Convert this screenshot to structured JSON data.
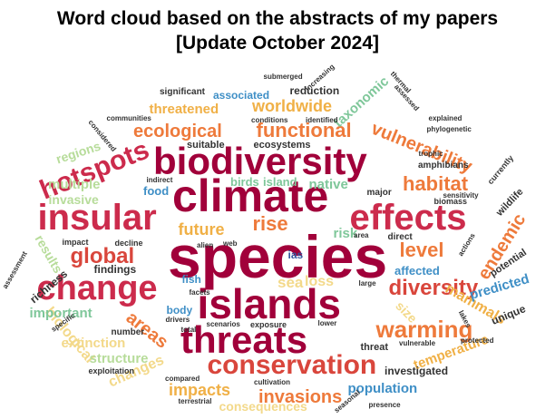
{
  "title": {
    "line1": "Word cloud based on the abstracts of my papers",
    "line2": "[Update October 2024]"
  },
  "colors": {
    "maroon": "#a1003a",
    "crimson": "#cc2b4c",
    "red": "#d9463c",
    "orange": "#ee7a3b",
    "gold": "#f0b046",
    "yellow": "#f3d98a",
    "lightgreen": "#b7dc9a",
    "green": "#7fc79a",
    "blue": "#3f8fc6",
    "darkblue": "#34579e",
    "dark": "#333333"
  },
  "words": [
    {
      "text": "species",
      "color": "maroon"
    },
    {
      "text": "climate",
      "color": "maroon"
    },
    {
      "text": "biodiversity",
      "color": "maroon"
    },
    {
      "text": "islands",
      "color": "maroon"
    },
    {
      "text": "effects",
      "color": "crimson"
    },
    {
      "text": "insular",
      "color": "crimson"
    },
    {
      "text": "change",
      "color": "crimson"
    },
    {
      "text": "threats",
      "color": "maroon"
    },
    {
      "text": "hotspots",
      "color": "crimson"
    },
    {
      "text": "conservation",
      "color": "red"
    },
    {
      "text": "functional",
      "color": "orange"
    },
    {
      "text": "ecological",
      "color": "orange"
    },
    {
      "text": "warming",
      "color": "orange"
    },
    {
      "text": "diversity",
      "color": "red"
    },
    {
      "text": "global",
      "color": "red"
    },
    {
      "text": "habitat",
      "color": "orange"
    },
    {
      "text": "level",
      "color": "orange"
    },
    {
      "text": "rise",
      "color": "orange"
    },
    {
      "text": "vulnerability",
      "color": "orange"
    },
    {
      "text": "invasions",
      "color": "orange"
    },
    {
      "text": "areas",
      "color": "orange"
    },
    {
      "text": "endemic",
      "color": "orange"
    },
    {
      "text": "worldwide",
      "color": "gold"
    },
    {
      "text": "future",
      "color": "gold"
    },
    {
      "text": "impacts",
      "color": "gold"
    },
    {
      "text": "threatened",
      "color": "gold"
    },
    {
      "text": "mammals",
      "color": "gold"
    },
    {
      "text": "temperature",
      "color": "gold"
    },
    {
      "text": "sea",
      "color": "yellow"
    },
    {
      "text": "loss",
      "color": "yellow"
    },
    {
      "text": "size",
      "color": "yellow"
    },
    {
      "text": "consequences",
      "color": "yellow"
    },
    {
      "text": "changes",
      "color": "yellow"
    },
    {
      "text": "biological",
      "color": "yellow"
    },
    {
      "text": "extinction",
      "color": "yellow"
    },
    {
      "text": "structure",
      "color": "lightgreen"
    },
    {
      "text": "regions",
      "color": "lightgreen"
    },
    {
      "text": "multiple",
      "color": "lightgreen"
    },
    {
      "text": "invasive",
      "color": "lightgreen"
    },
    {
      "text": "results",
      "color": "lightgreen"
    },
    {
      "text": "important",
      "color": "green"
    },
    {
      "text": "taxonomic",
      "color": "green"
    },
    {
      "text": "birds",
      "color": "green"
    },
    {
      "text": "island",
      "color": "green"
    },
    {
      "text": "native",
      "color": "green"
    },
    {
      "text": "risk",
      "color": "green"
    },
    {
      "text": "population",
      "color": "blue"
    },
    {
      "text": "associated",
      "color": "blue"
    },
    {
      "text": "affected",
      "color": "blue"
    },
    {
      "text": "predicted",
      "color": "blue"
    },
    {
      "text": "food",
      "color": "blue"
    },
    {
      "text": "fish",
      "color": "blue"
    },
    {
      "text": "body",
      "color": "blue"
    },
    {
      "text": "ias",
      "color": "darkblue"
    },
    {
      "text": "investigated",
      "color": "dark"
    },
    {
      "text": "unique",
      "color": "dark"
    },
    {
      "text": "richness",
      "color": "dark"
    },
    {
      "text": "findings",
      "color": "dark"
    },
    {
      "text": "reduction",
      "color": "dark"
    },
    {
      "text": "ecosystems",
      "color": "dark"
    },
    {
      "text": "suitable",
      "color": "dark"
    },
    {
      "text": "amphibians",
      "color": "dark"
    },
    {
      "text": "wildlife",
      "color": "dark"
    },
    {
      "text": "threat",
      "color": "dark"
    },
    {
      "text": "potential",
      "color": "dark"
    },
    {
      "text": "number",
      "color": "dark"
    },
    {
      "text": "exploitation",
      "color": "dark"
    },
    {
      "text": "exposure",
      "color": "dark"
    },
    {
      "text": "significant",
      "color": "dark"
    },
    {
      "text": "direct",
      "color": "dark"
    },
    {
      "text": "major",
      "color": "dark"
    },
    {
      "text": "impact",
      "color": "dark"
    },
    {
      "text": "decline",
      "color": "dark"
    },
    {
      "text": "biomass",
      "color": "dark"
    },
    {
      "text": "currently",
      "color": "dark"
    },
    {
      "text": "submerged",
      "color": "dark"
    },
    {
      "text": "increasing",
      "color": "dark"
    },
    {
      "text": "thermal",
      "color": "dark"
    },
    {
      "text": "assessed",
      "color": "dark"
    },
    {
      "text": "communities",
      "color": "dark"
    },
    {
      "text": "conditions",
      "color": "dark"
    },
    {
      "text": "identified",
      "color": "dark"
    },
    {
      "text": "explained",
      "color": "dark"
    },
    {
      "text": "phylogenetic",
      "color": "dark"
    },
    {
      "text": "considered",
      "color": "dark"
    },
    {
      "text": "trophic",
      "color": "dark"
    },
    {
      "text": "indirect",
      "color": "dark"
    },
    {
      "text": "sensitivity",
      "color": "dark"
    },
    {
      "text": "alien",
      "color": "dark"
    },
    {
      "text": "web",
      "color": "dark"
    },
    {
      "text": "area",
      "color": "dark"
    },
    {
      "text": "actions",
      "color": "dark"
    },
    {
      "text": "assessment",
      "color": "dark"
    },
    {
      "text": "large",
      "color": "dark"
    },
    {
      "text": "facets",
      "color": "dark"
    },
    {
      "text": "specific",
      "color": "dark"
    },
    {
      "text": "drivers",
      "color": "dark"
    },
    {
      "text": "total",
      "color": "dark"
    },
    {
      "text": "scenarios",
      "color": "dark"
    },
    {
      "text": "lower",
      "color": "dark"
    },
    {
      "text": "lakes",
      "color": "dark"
    },
    {
      "text": "protected",
      "color": "dark"
    },
    {
      "text": "vulnerable",
      "color": "dark"
    },
    {
      "text": "compared",
      "color": "dark"
    },
    {
      "text": "cultivation",
      "color": "dark"
    },
    {
      "text": "terrestrial",
      "color": "dark"
    },
    {
      "text": "seasonal",
      "color": "dark"
    },
    {
      "text": "presence",
      "color": "dark"
    }
  ]
}
